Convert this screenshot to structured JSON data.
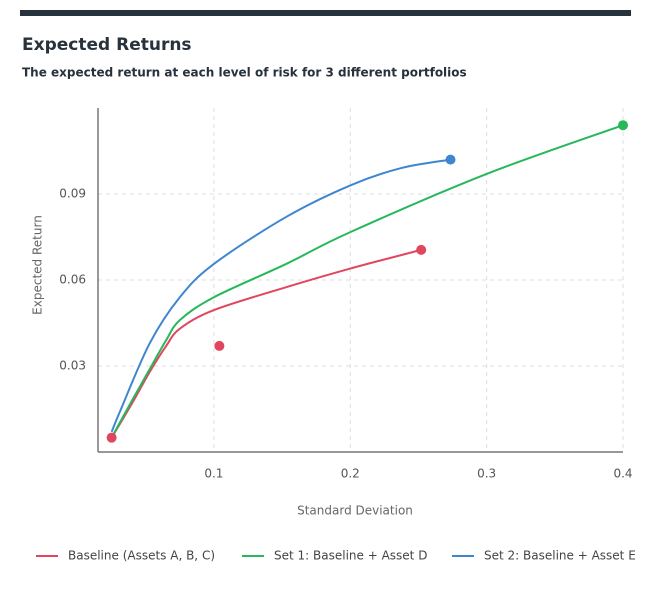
{
  "chart_data": {
    "type": "line",
    "title": "Expected Returns",
    "subtitle": "The expected return at each level of risk for 3 different portfolios",
    "x_label": "Standard Deviation",
    "y_label": "Expected Return",
    "xlim": [
      0.015,
      0.4
    ],
    "ylim": [
      0,
      0.12
    ],
    "xticks": [
      0.1,
      0.2,
      0.3,
      0.4
    ],
    "yticks": [
      0.03,
      0.06,
      0.09
    ],
    "grid": true,
    "legend": "bottom",
    "series": [
      {
        "name": "Baseline (Assets A, B, C)",
        "color": "#e0475f",
        "x": [
          0.025,
          0.04,
          0.053,
          0.065,
          0.075,
          0.1,
          0.153,
          0.2,
          0.252
        ],
        "values": [
          0.005,
          0.017,
          0.028,
          0.037,
          0.043,
          0.0495,
          0.0575,
          0.064,
          0.0705
        ],
        "marker_x": [
          0.025,
          0.104,
          0.252
        ],
        "marker_y": [
          0.005,
          0.037,
          0.0705
        ]
      },
      {
        "name": "Set 1: Baseline + Asset D",
        "color": "#26b85a",
        "x": [
          0.025,
          0.04,
          0.053,
          0.065,
          0.075,
          0.1,
          0.153,
          0.2,
          0.3,
          0.4
        ],
        "values": [
          0.005,
          0.018,
          0.029,
          0.039,
          0.046,
          0.054,
          0.0656,
          0.0767,
          0.097,
          0.114
        ],
        "marker_x": [
          0.4
        ],
        "marker_y": [
          0.114
        ]
      },
      {
        "name": "Set 2: Baseline + Asset E",
        "color": "#3f86d0",
        "x": [
          0.025,
          0.031,
          0.053,
          0.075,
          0.1,
          0.153,
          0.2,
          0.237,
          0.2735
        ],
        "values": [
          0.007,
          0.014,
          0.038,
          0.054,
          0.0656,
          0.082,
          0.093,
          0.099,
          0.102
        ],
        "marker_x": [
          0.2735
        ],
        "marker_y": [
          0.102
        ]
      }
    ]
  }
}
